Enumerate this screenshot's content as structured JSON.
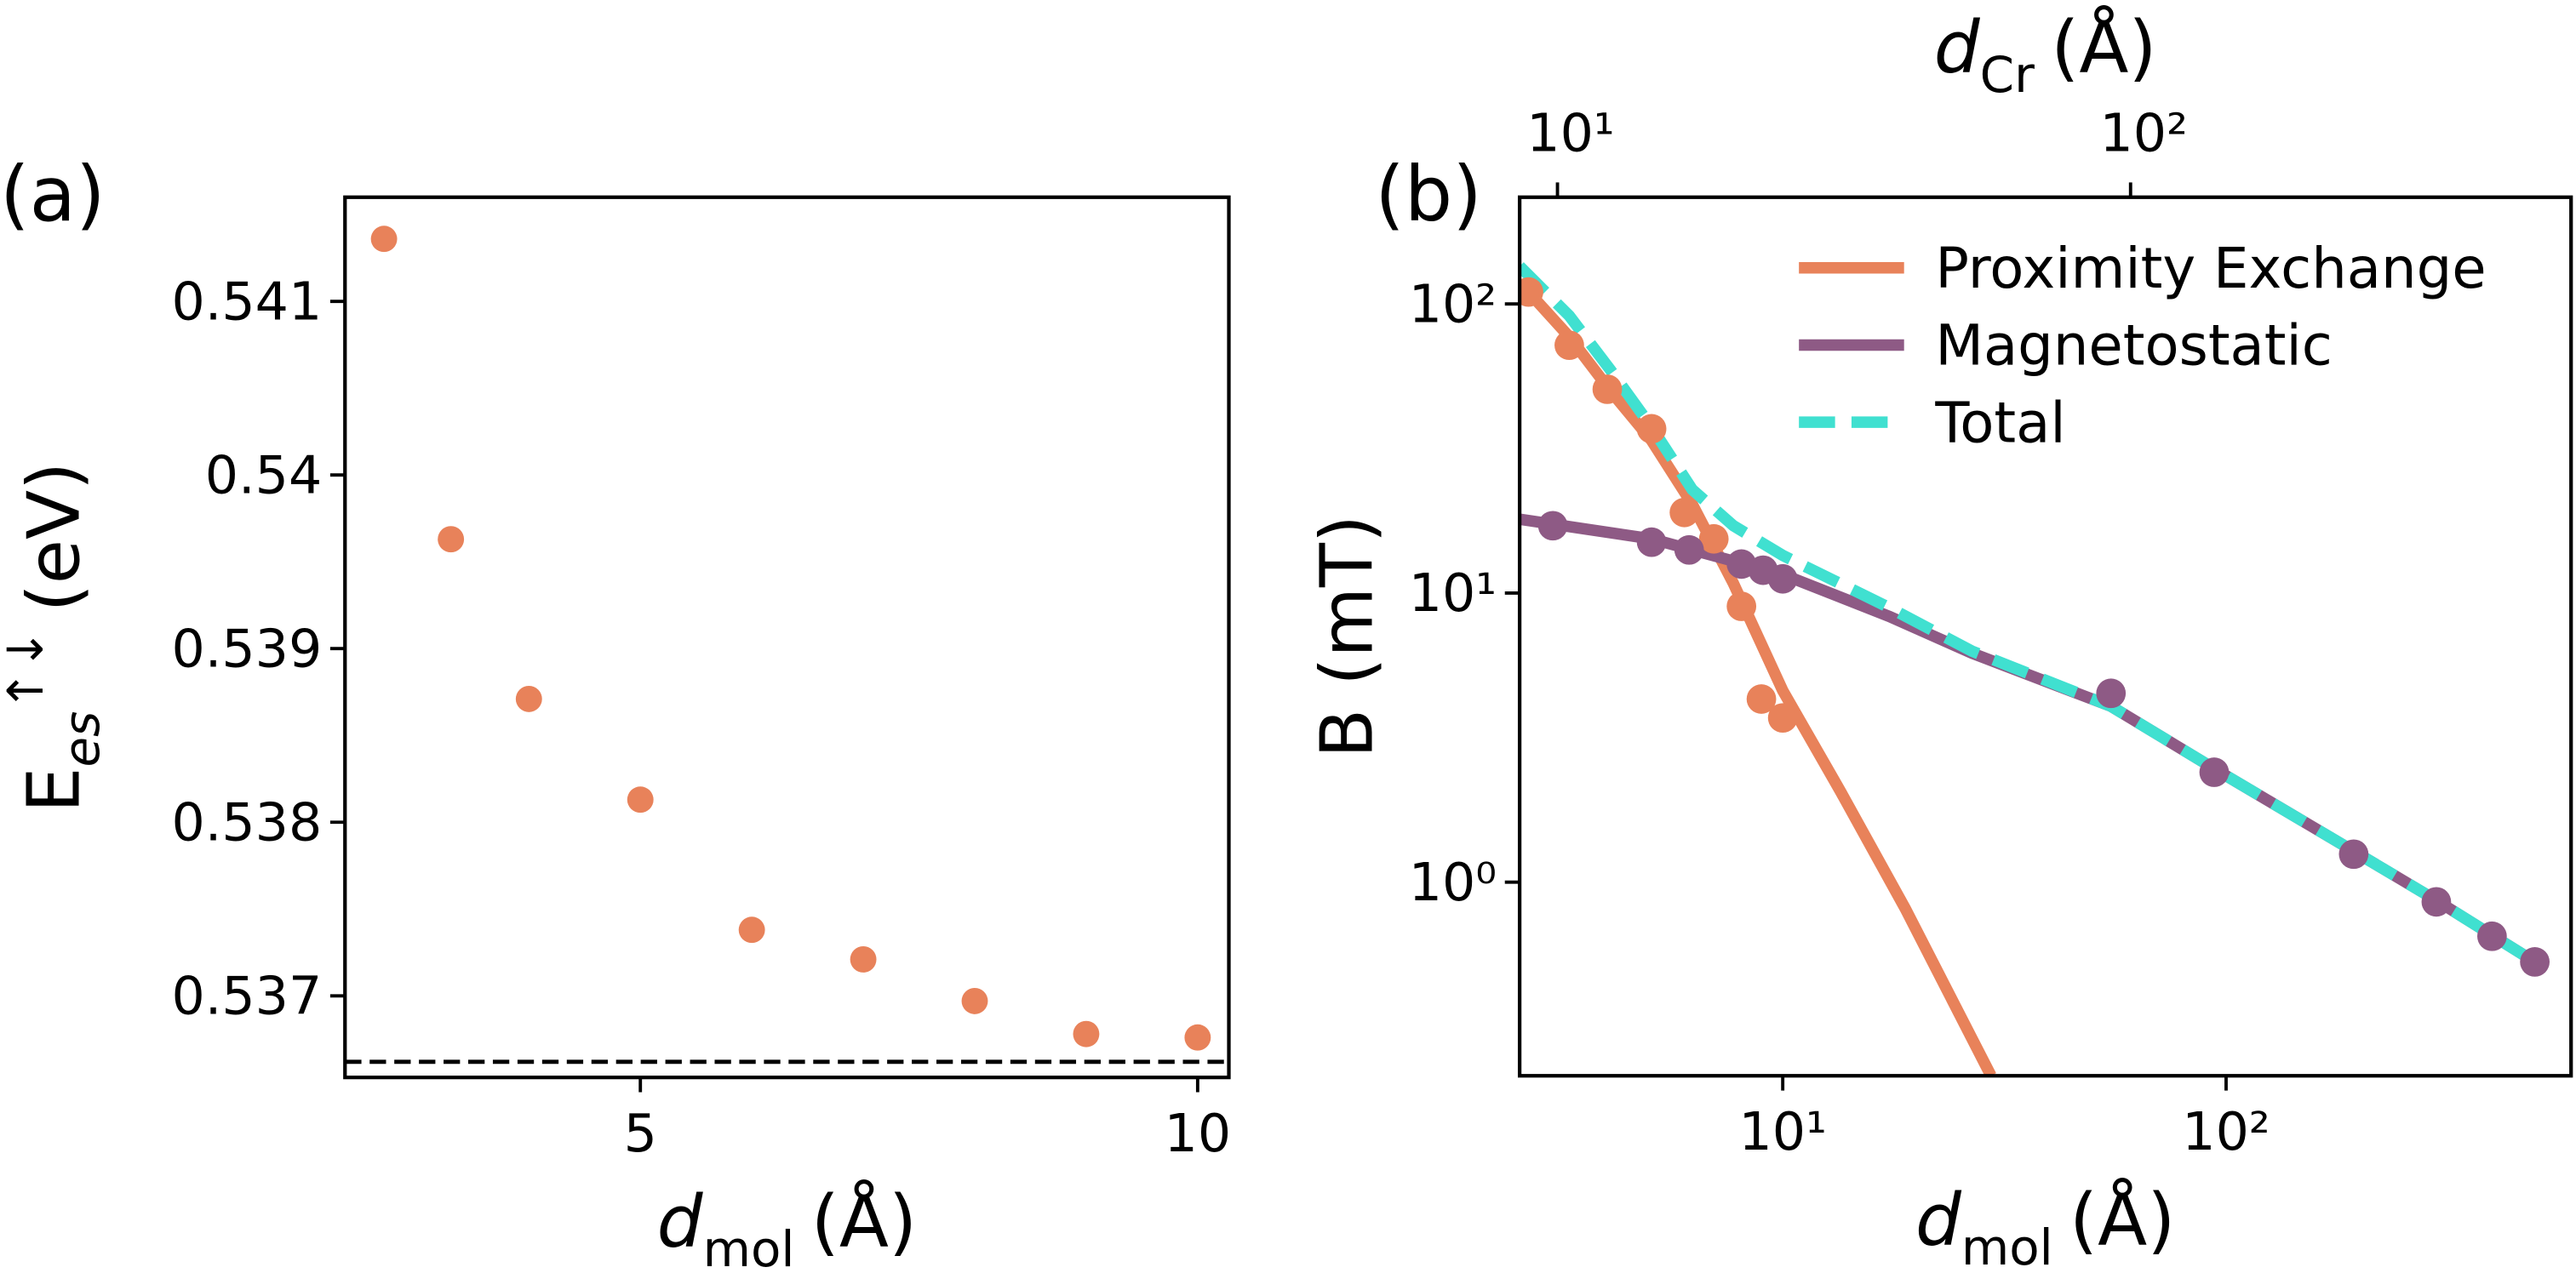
{
  "chart_data": [
    {
      "type": "scatter",
      "panel_label": "(a)",
      "xlabel": {
        "main": "d",
        "sub": "mol",
        "unit": "(Å)"
      },
      "ylabel": {
        "main": "E",
        "sub": "es",
        "sup": "↑↓",
        "unit": "(eV)"
      },
      "x": [
        2.7,
        3.3,
        4,
        5,
        6,
        7,
        8,
        9,
        10
      ],
      "values": [
        0.54136,
        0.53963,
        0.53871,
        0.53813,
        0.53738,
        0.53721,
        0.53697,
        0.53678,
        0.53676
      ],
      "color": "#e8825a",
      "hline": 0.53662,
      "hline_color": "#000000",
      "xlim": [
        2.35,
        10.28
      ],
      "ylim": [
        0.53653,
        0.5416
      ],
      "xticks": [
        5,
        10
      ],
      "yticks": [
        0.537,
        0.538,
        0.539,
        0.54,
        0.541
      ]
    },
    {
      "type": "line",
      "panel_label": "(b)",
      "xscale": "log",
      "yscale": "log",
      "xlabel": {
        "main": "d",
        "sub": "mol",
        "unit": "(Å)"
      },
      "x2label": {
        "main": "d",
        "sub": "Cr",
        "unit": "(Å)"
      },
      "ylabel": "B (mT)",
      "xlim": [
        2.55,
        600
      ],
      "ylim": [
        0.214,
        234
      ],
      "x2lim": [
        8.59,
        587
      ],
      "xticks": [
        {
          "value": 10,
          "label": "10¹"
        },
        {
          "value": 100,
          "label": "10²"
        }
      ],
      "x2ticks": [
        {
          "value": 10,
          "label": "10¹"
        },
        {
          "value": 100,
          "label": "10²"
        }
      ],
      "yticks": [
        {
          "value": 1,
          "label": "10⁰"
        },
        {
          "value": 10,
          "label": "10¹"
        },
        {
          "value": 100,
          "label": "10²"
        }
      ],
      "legend": "upper right",
      "series": [
        {
          "name": "Proximity Exchange",
          "color": "#e8825a",
          "style": "solid",
          "x": [
            2.55,
            3.3,
            4.09,
            5.06,
            6.25,
            7.74,
            10,
            13.5,
            18.9,
            29.5
          ],
          "values": [
            119,
            77,
            50,
            33.7,
            20.3,
            10.8,
            4.6,
            2.06,
            0.81,
            0.214
          ]
        },
        {
          "name": "Magnetostatic",
          "color": "#8e5a85",
          "style": "solid",
          "x": [
            2.55,
            5.06,
            10,
            17.4,
            26.7,
            55,
            94,
            194,
            298,
            497
          ],
          "values": [
            18.0,
            15.4,
            11.6,
            8.3,
            6.2,
            4.06,
            2.47,
            1.28,
            0.865,
            0.53
          ]
        },
        {
          "name": "Total",
          "color": "#40e0d0",
          "style": "dashed",
          "x": [
            2.55,
            3.3,
            4.09,
            5.06,
            6.25,
            7.74,
            10,
            17.4,
            26.7,
            55,
            94,
            194,
            298,
            497
          ],
          "values": [
            135,
            91,
            59,
            37.5,
            22.8,
            17.1,
            13.5,
            8.9,
            6.3,
            4.06,
            2.47,
            1.28,
            0.865,
            0.53
          ]
        }
      ],
      "points": [
        {
          "color": "#e8825a",
          "x": [
            2.67,
            3.3,
            4.02,
            5.06,
            6.0,
            6.99,
            8.07,
            8.95,
            10
          ],
          "values": [
            110,
            72,
            50.7,
            37,
            19,
            15.4,
            9.0,
            4.3,
            3.7
          ]
        },
        {
          "color": "#8e5a85",
          "x": [
            3.03,
            5.06,
            6.15,
            8.07,
            9.03,
            10,
            55,
            94,
            194,
            298,
            398,
            497
          ],
          "values": [
            17.1,
            15.0,
            14.1,
            12.6,
            12.0,
            11.2,
            4.5,
            2.4,
            1.25,
            0.855,
            0.65,
            0.53
          ]
        }
      ]
    }
  ]
}
